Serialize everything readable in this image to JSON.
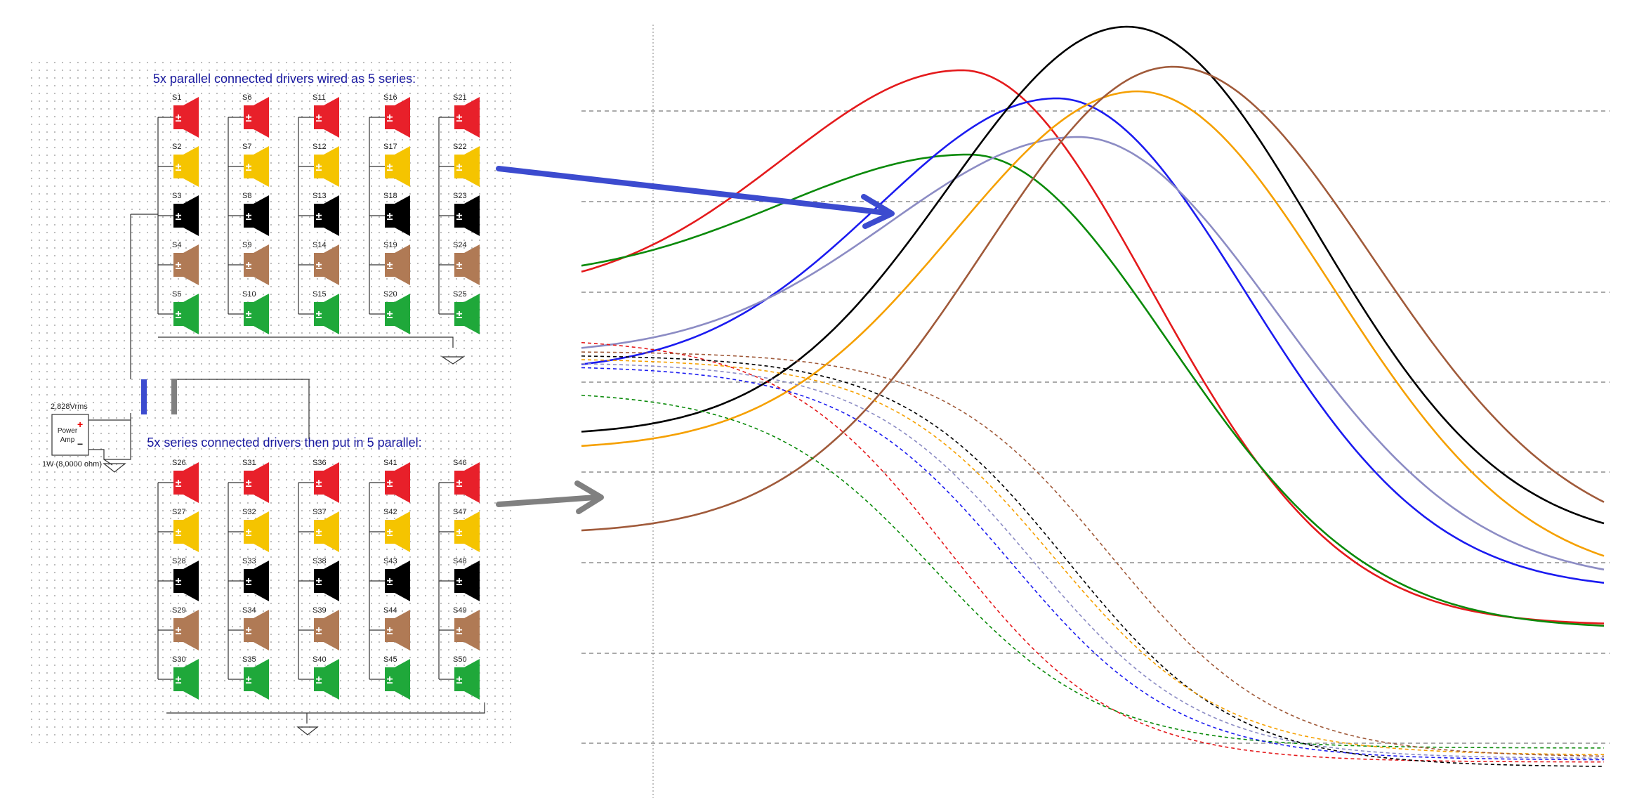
{
  "top_section": {
    "title": "5x parallel connected drivers wired as 5 series:",
    "columns": [
      [
        "S1",
        "S2",
        "S3",
        "S4",
        "S5"
      ],
      [
        "S6",
        "S7",
        "S8",
        "S9",
        "S10"
      ],
      [
        "S11",
        "S12",
        "S13",
        "S14",
        "S15"
      ],
      [
        "S16",
        "S17",
        "S18",
        "S19",
        "S20"
      ],
      [
        "S21",
        "S22",
        "S23",
        "S24",
        "S25"
      ]
    ]
  },
  "bottom_section": {
    "title": "5x series connected drivers then put in 5 parallel:",
    "columns": [
      [
        "S26",
        "S27",
        "S28",
        "S29",
        "S30"
      ],
      [
        "S31",
        "S32",
        "S33",
        "S34",
        "S35"
      ],
      [
        "S36",
        "S37",
        "S38",
        "S39",
        "S40"
      ],
      [
        "S41",
        "S42",
        "S43",
        "S44",
        "S45"
      ],
      [
        "S46",
        "S47",
        "S48",
        "S49",
        "S50"
      ]
    ]
  },
  "amplifier": {
    "voltage": "2,828Vrms",
    "label_line1": "Power",
    "label_line2": "Amp",
    "power": "1W (8,0000 ohm)"
  },
  "colors": {
    "row_colors": [
      "#e8202a",
      "#f5c400",
      "#000000",
      "#b07a55",
      "#1fa83a"
    ],
    "top_selector": "#3c4bcf",
    "bottom_selector": "#808080",
    "grid_line": "#777777"
  },
  "chart_data": {
    "type": "line",
    "description_note": "",
    "series": [
      {
        "color": "#e41a1c",
        "style": "solid"
      },
      {
        "color": "#0a8a0a",
        "style": "solid"
      },
      {
        "color": "#1b1bf0",
        "style": "solid"
      },
      {
        "color": "#8c8cc4",
        "style": "solid"
      },
      {
        "color": "#000000",
        "style": "solid"
      },
      {
        "color": "#f5a000",
        "style": "solid"
      },
      {
        "color": "#a05a3a",
        "style": "solid"
      },
      {
        "color": "#e41a1c",
        "style": "dashed"
      },
      {
        "color": "#0a8a0a",
        "style": "dashed"
      },
      {
        "color": "#1b1bf0",
        "style": "dashed"
      },
      {
        "color": "#8c8cc4",
        "style": "dashed"
      },
      {
        "color": "#000000",
        "style": "dashed"
      },
      {
        "color": "#f5a000",
        "style": "dashed"
      },
      {
        "color": "#a05a3a",
        "style": "dashed"
      }
    ],
    "grid": "horizontal dashed",
    "legend": "none"
  }
}
